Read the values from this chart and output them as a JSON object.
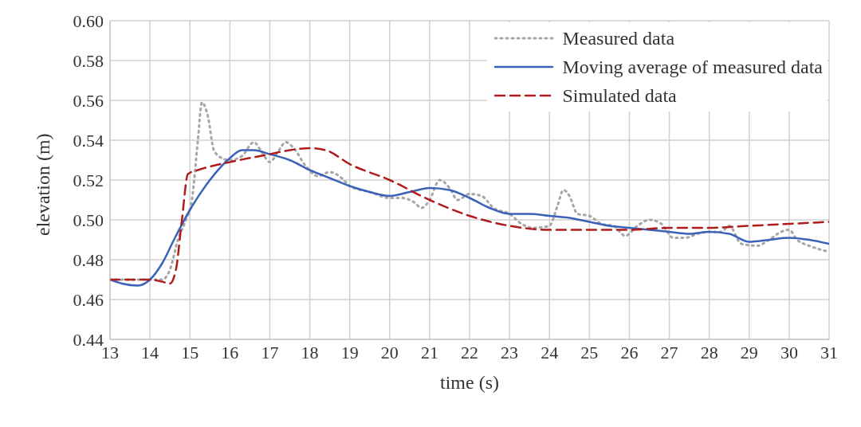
{
  "chart_data": {
    "type": "line",
    "xlabel": "time (s)",
    "ylabel": "elevation (m)",
    "xlim": [
      13,
      31
    ],
    "xticks": [
      13,
      14,
      15,
      16,
      17,
      18,
      19,
      20,
      21,
      22,
      23,
      24,
      25,
      26,
      27,
      28,
      29,
      30,
      31
    ],
    "ylim": [
      0.44,
      0.6
    ],
    "yticks": [
      {
        "value": 0.44,
        "label": "0.44"
      },
      {
        "value": 0.46,
        "label": "0.46"
      },
      {
        "value": 0.48,
        "label": "0.48"
      },
      {
        "value": 0.5,
        "label": "0.50"
      },
      {
        "value": 0.52,
        "label": "0.52"
      },
      {
        "value": 0.54,
        "label": "0.54"
      },
      {
        "value": 0.56,
        "label": "0.56"
      },
      {
        "value": 0.58,
        "label": "0.58"
      },
      {
        "value": 0.6,
        "label": "0.60"
      }
    ],
    "grid": true,
    "legend": "top right",
    "marker": "none",
    "series": [
      {
        "name": "Measured data",
        "color": "#a6a6a6",
        "line_style": "dotted",
        "x": [
          13,
          13.5,
          14,
          14.3,
          14.5,
          14.7,
          14.9,
          15.05,
          15.2,
          15.3,
          15.45,
          15.6,
          15.8,
          16,
          16.3,
          16.6,
          16.8,
          17,
          17.2,
          17.4,
          17.6,
          17.9,
          18.2,
          18.5,
          18.8,
          19,
          19.5,
          20,
          20.3,
          20.6,
          20.8,
          21,
          21.25,
          21.5,
          21.7,
          22,
          22.3,
          22.6,
          23,
          23.3,
          23.6,
          24,
          24.2,
          24.35,
          24.5,
          24.7,
          25,
          25.3,
          25.6,
          25.9,
          26.2,
          26.5,
          26.8,
          27.1,
          27.4,
          27.7,
          28,
          28.3,
          28.5,
          28.8,
          29.2,
          29.5,
          29.8,
          30,
          30.2,
          30.5,
          30.8,
          31
        ],
        "values": [
          0.47,
          0.47,
          0.47,
          0.47,
          0.475,
          0.49,
          0.5,
          0.51,
          0.54,
          0.559,
          0.552,
          0.535,
          0.531,
          0.53,
          0.532,
          0.539,
          0.534,
          0.529,
          0.534,
          0.539,
          0.536,
          0.527,
          0.522,
          0.524,
          0.521,
          0.517,
          0.514,
          0.511,
          0.511,
          0.509,
          0.506,
          0.51,
          0.52,
          0.516,
          0.51,
          0.513,
          0.512,
          0.506,
          0.503,
          0.498,
          0.496,
          0.497,
          0.507,
          0.515,
          0.512,
          0.503,
          0.502,
          0.498,
          0.497,
          0.492,
          0.497,
          0.5,
          0.498,
          0.491,
          0.491,
          0.493,
          0.494,
          0.494,
          0.497,
          0.488,
          0.487,
          0.49,
          0.494,
          0.495,
          0.49,
          0.487,
          0.485,
          0.484
        ]
      },
      {
        "name": "Moving average of measured data",
        "color": "#3a62b8",
        "line_style": "solid",
        "x": [
          13,
          13.3,
          13.7,
          14,
          14.3,
          14.6,
          15,
          15.5,
          16,
          16.3,
          16.6,
          17,
          17.5,
          18,
          18.5,
          19,
          19.5,
          20,
          20.5,
          21,
          21.5,
          22,
          22.5,
          23,
          23.5,
          24,
          24.5,
          25,
          25.5,
          26,
          26.5,
          27,
          27.5,
          28,
          28.5,
          29,
          29.5,
          30,
          30.5,
          31
        ],
        "values": [
          0.47,
          0.468,
          0.467,
          0.47,
          0.478,
          0.49,
          0.505,
          0.52,
          0.531,
          0.535,
          0.535,
          0.533,
          0.53,
          0.525,
          0.521,
          0.517,
          0.514,
          0.512,
          0.514,
          0.516,
          0.515,
          0.511,
          0.506,
          0.503,
          0.503,
          0.502,
          0.501,
          0.499,
          0.497,
          0.496,
          0.495,
          0.494,
          0.493,
          0.494,
          0.493,
          0.489,
          0.49,
          0.491,
          0.49,
          0.488
        ]
      },
      {
        "name": "Simulated data",
        "color": "#b01c1c",
        "line_style": "dashed",
        "x": [
          13,
          14,
          14.3,
          14.5,
          14.65,
          14.8,
          14.95,
          15.2,
          16,
          17,
          17.5,
          18,
          18.4,
          19,
          20,
          21,
          22,
          23,
          24,
          25,
          26,
          27,
          28,
          29,
          30,
          31
        ],
        "values": [
          0.47,
          0.47,
          0.469,
          0.468,
          0.475,
          0.5,
          0.523,
          0.525,
          0.529,
          0.533,
          0.535,
          0.536,
          0.535,
          0.528,
          0.52,
          0.51,
          0.502,
          0.497,
          0.495,
          0.495,
          0.495,
          0.496,
          0.496,
          0.497,
          0.498,
          0.499
        ]
      }
    ]
  }
}
